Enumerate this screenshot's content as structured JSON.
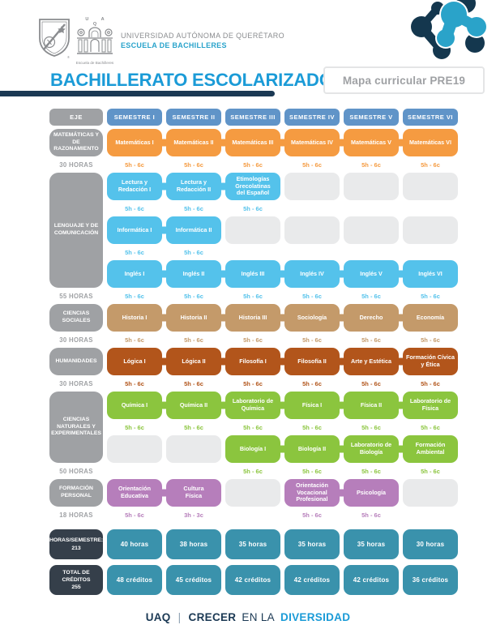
{
  "page": {
    "university": "UNIVERSIDAD AUTÓNOMA DE QUERÉTARO",
    "school": "ESCUELA DE BACHILLERES",
    "logo_uaq_letters": "U A Q",
    "logo_school_caption": "Escuela de Bachilleres",
    "title": "BACHILLERATO ESCOLARIZADO",
    "map_label": "Mapa curricular PRE19",
    "footer": {
      "uaq": "UAQ",
      "sep": "|",
      "crecer": "CRECER",
      "en_la": "EN LA",
      "diversidad": "DIVERSIDAD"
    }
  },
  "colors": {
    "semester_blue": "#6094C8",
    "eje_gray": "#9FA1A4",
    "empty_cell": "#E9EAEB",
    "summary_navy": "#353F4A",
    "summary_teal": "#3A92AC",
    "title_cyan": "#1B9BD7",
    "footer_navy": "#1B3954",
    "school_cyan": "#29A3CB",
    "university_gray": "#8A8C8F",
    "molecule_dark": "#14374E",
    "molecule_cyan": "#2AA3C9",
    "matematicas_orange": "#F59B41",
    "lenguaje_skyblue": "#54C2EB",
    "sociales_tan": "#C49A6A",
    "humanidades_rust": "#B2551B",
    "naturales_green": "#8BC53E",
    "personal_purple": "#B67EBB"
  },
  "table": {
    "eje_header": "EJE",
    "semesters": [
      "SEMESTRE I",
      "SEMESTRE II",
      "SEMESTRE III",
      "SEMESTRE IV",
      "SEMESTRE V",
      "SEMESTRE VI"
    ],
    "sections": [
      {
        "name": "matematicas",
        "eje": "MATEMÁTICAS Y\nDE RAZONAMIENTO",
        "hours": "30 HORAS",
        "color": "#F59B41",
        "rows": [
          [
            {
              "l": "Matemáticas I",
              "c": "5h - 6c"
            },
            {
              "l": "Matemáticas II",
              "c": "5h - 6c"
            },
            {
              "l": "Matemáticas III",
              "c": "5h - 6c"
            },
            {
              "l": "Matemáticas IV",
              "c": "5h - 6c"
            },
            {
              "l": "Matemáticas V",
              "c": "5h - 6c"
            },
            {
              "l": "Matemáticas VI",
              "c": "5h - 6c"
            }
          ]
        ]
      },
      {
        "name": "lenguaje",
        "eje": "LENGUAJE Y DE\nCOMUNICACIÓN",
        "hours": "55 HORAS",
        "color": "#54C2EB",
        "rows": [
          [
            {
              "l": "Lectura y\nRedacción I",
              "c": "5h - 6c"
            },
            {
              "l": "Lectura y\nRedacción II",
              "c": "5h - 6c"
            },
            {
              "l": "Etimologías\nGrecolatinas\ndel Español",
              "c": "5h - 6c"
            },
            null,
            null,
            null
          ],
          [
            {
              "l": "Informática I",
              "c": "5h - 6c"
            },
            {
              "l": "Informática II",
              "c": "5h - 6c"
            },
            null,
            null,
            null,
            null
          ],
          [
            {
              "l": "Inglés I",
              "c": "5h - 6c"
            },
            {
              "l": "Inglés II",
              "c": "5h - 6c"
            },
            {
              "l": "Inglés III",
              "c": "5h - 6c"
            },
            {
              "l": "Inglés IV",
              "c": "5h - 6c"
            },
            {
              "l": "Inglés V",
              "c": "5h - 6c"
            },
            {
              "l": "Inglés VI",
              "c": "5h - 6c"
            }
          ]
        ]
      },
      {
        "name": "sociales",
        "eje": "CIENCIAS\nSOCIALES",
        "hours": "30 HORAS",
        "color": "#C49A6A",
        "rows": [
          [
            {
              "l": "Historia I",
              "c": "5h - 6c"
            },
            {
              "l": "Historia II",
              "c": "5h - 6c"
            },
            {
              "l": "Historia III",
              "c": "5h - 6c"
            },
            {
              "l": "Sociología",
              "c": "5h - 6c"
            },
            {
              "l": "Derecho",
              "c": "5h - 6c"
            },
            {
              "l": "Economía",
              "c": "5h - 6c"
            }
          ]
        ]
      },
      {
        "name": "humanidades",
        "eje": "HUMANIDADES",
        "hours": "30 HORAS",
        "color": "#B2551B",
        "rows": [
          [
            {
              "l": "Lógica I",
              "c": "5h - 6c"
            },
            {
              "l": "Lógica II",
              "c": "5h - 6c"
            },
            {
              "l": "Filosofía I",
              "c": "5h - 6c"
            },
            {
              "l": "Filosofía II",
              "c": "5h - 6c"
            },
            {
              "l": "Arte y Estética",
              "c": "5h - 6c"
            },
            {
              "l": "Formación Cívica\ny Ética",
              "c": "5h - 6c"
            }
          ]
        ]
      },
      {
        "name": "naturales",
        "eje": "CIENCIAS\nNATURALES Y\nEXPERIMENTALES",
        "hours": "50 HORAS",
        "color": "#8BC53E",
        "rows": [
          [
            {
              "l": "Química I",
              "c": "5h - 6c"
            },
            {
              "l": "Química II",
              "c": "5h - 6c"
            },
            {
              "l": "Laboratorio de\nQuímica",
              "c": "5h - 6c"
            },
            {
              "l": "Física I",
              "c": "5h - 6c"
            },
            {
              "l": "Física II",
              "c": "5h - 6c"
            },
            {
              "l": "Laboratorio de\nFísica",
              "c": "5h - 6c"
            }
          ],
          [
            null,
            null,
            {
              "l": "Biología I",
              "c": "5h - 6c"
            },
            {
              "l": "Biología II",
              "c": "5h - 6c"
            },
            {
              "l": "Laboratorio de\nBiología",
              "c": "5h - 6c"
            },
            {
              "l": "Formación\nAmbiental",
              "c": "5h - 6c"
            }
          ]
        ]
      },
      {
        "name": "personal",
        "eje": "FORMACIÓN\nPERSONAL",
        "hours": "18 HORAS",
        "color": "#B67EBB",
        "rows": [
          [
            {
              "l": "Orientación\nEducativa",
              "c": "5h - 6c"
            },
            {
              "l": "Cultura\nFísica",
              "c": "3h - 3c"
            },
            null,
            {
              "l": "Orientación\nVocacional\nProfesional",
              "c": "5h - 6c"
            },
            {
              "l": "Psicología",
              "c": "5h - 6c"
            },
            null
          ]
        ]
      }
    ],
    "summary": [
      {
        "name": "horas",
        "eje": "HORAS/SEMESTRE:\n213",
        "values": [
          "40 horas",
          "38 horas",
          "35 horas",
          "35 horas",
          "35 horas",
          "30 horas"
        ]
      },
      {
        "name": "creditos",
        "eje": "TOTAL DE CRÉDITOS\n255",
        "values": [
          "48 créditos",
          "45 créditos",
          "42 créditos",
          "42 créditos",
          "42 créditos",
          "36 créditos"
        ]
      }
    ]
  }
}
